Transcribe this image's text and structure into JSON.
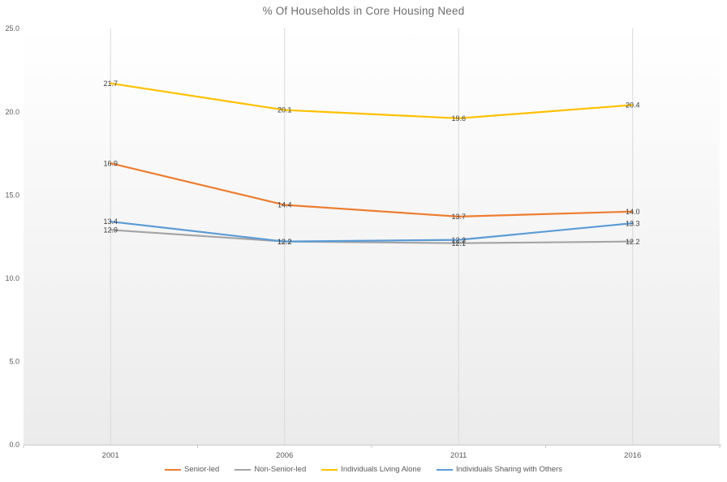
{
  "chart_data": {
    "type": "line",
    "title": "% Of Households in Core Housing Need",
    "categories": [
      "2001",
      "2006",
      "2011",
      "2016"
    ],
    "series": [
      {
        "name": "Senior-led",
        "color": "#ED7D31",
        "values": [
          16.9,
          14.4,
          13.7,
          14.0
        ]
      },
      {
        "name": "Non-Senior-led",
        "color": "#A5A5A5",
        "values": [
          12.9,
          12.2,
          12.1,
          12.2
        ]
      },
      {
        "name": "Individuals Living Alone",
        "color": "#FFC000",
        "values": [
          21.7,
          20.1,
          19.6,
          20.4
        ]
      },
      {
        "name": "Individuals Sharing with Others",
        "color": "#5B9BD5",
        "values": [
          13.4,
          12.2,
          12.3,
          13.3
        ]
      }
    ],
    "y_ticks": [
      "0.0",
      "5.0",
      "10.0",
      "15.0",
      "20.0",
      "25.0"
    ],
    "ylim": [
      0,
      25
    ],
    "xlabel": "",
    "ylabel": "",
    "grid": "vertical-only",
    "legend_position": "bottom",
    "data_labels": true,
    "colors": {
      "title": "#6D6D6D",
      "grid": "#D9D9D9",
      "axis": "#C8C8C8",
      "tick_label": "#595959",
      "data_label": "#404040",
      "plot_bg_top": "#FFFFFF",
      "plot_bg_bottom": "#EBEBEB"
    }
  }
}
